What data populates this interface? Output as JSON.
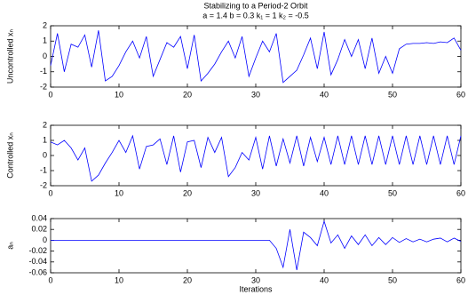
{
  "chart_data": [
    {
      "type": "line",
      "title": "Stabilizing to a Period-2 Orbit",
      "subtitle": "a = 1.4  b = 0.3  k₁ = 1  k₂ = -0.5",
      "ylabel": "Uncontrolled xₙ",
      "color": "#0000ff",
      "xlim": [
        0,
        60
      ],
      "xticks": [
        0,
        10,
        20,
        30,
        40,
        50,
        60
      ],
      "ylim": [
        -2,
        2
      ],
      "yticks": [
        -2,
        -1,
        0,
        1,
        2
      ],
      "x": [
        0,
        1,
        2,
        3,
        4,
        5,
        6,
        7,
        8,
        9,
        10,
        11,
        12,
        13,
        14,
        15,
        16,
        17,
        18,
        19,
        20,
        21,
        22,
        23,
        24,
        25,
        26,
        27,
        28,
        29,
        30,
        31,
        32,
        33,
        34,
        35,
        36,
        37,
        38,
        39,
        40,
        41,
        42,
        43,
        44,
        45,
        46,
        47,
        48,
        49,
        50,
        51,
        52,
        53,
        54,
        55,
        56,
        57,
        58,
        59,
        60
      ],
      "values": [
        -0.6,
        1.5,
        -1.0,
        0.8,
        0.6,
        1.4,
        -0.7,
        1.7,
        -1.6,
        -1.3,
        -0.6,
        0.3,
        1.0,
        -0.1,
        1.3,
        -1.3,
        -0.2,
        0.9,
        0.6,
        1.3,
        -0.8,
        1.4,
        -1.6,
        -1.1,
        -0.5,
        0.3,
        1.0,
        -0.1,
        1.3,
        -1.3,
        -0.1,
        1.0,
        0.3,
        1.5,
        -1.7,
        -1.3,
        -0.9,
        0.1,
        1.2,
        -0.8,
        1.6,
        -1.2,
        -0.2,
        1.1,
        0.0,
        1.1,
        -0.8,
        1.2,
        -1.1,
        0.0,
        -1.1,
        0.5,
        0.8,
        0.85,
        0.85,
        0.9,
        0.85,
        0.95,
        0.9,
        1.2,
        0.4
      ]
    },
    {
      "type": "line",
      "ylabel": "Controlled xₙ",
      "color": "#0000ff",
      "xlim": [
        0,
        60
      ],
      "xticks": [
        0,
        10,
        20,
        30,
        40,
        50,
        60
      ],
      "ylim": [
        -2,
        2
      ],
      "yticks": [
        -2,
        -1,
        0,
        1,
        2
      ],
      "x": [
        0,
        1,
        2,
        3,
        4,
        5,
        6,
        7,
        8,
        9,
        10,
        11,
        12,
        13,
        14,
        15,
        16,
        17,
        18,
        19,
        20,
        21,
        22,
        23,
        24,
        25,
        26,
        27,
        28,
        29,
        30,
        31,
        32,
        33,
        34,
        35,
        36,
        37,
        38,
        39,
        40,
        41,
        42,
        43,
        44,
        45,
        46,
        47,
        48,
        49,
        50,
        51,
        52,
        53,
        54,
        55,
        56,
        57,
        58,
        59,
        60
      ],
      "values": [
        0.9,
        0.7,
        1.0,
        0.5,
        -0.3,
        0.5,
        -1.7,
        -1.3,
        -0.5,
        0.2,
        1.0,
        0.2,
        1.3,
        -0.9,
        0.6,
        0.7,
        1.1,
        -0.6,
        1.3,
        -1.1,
        0.9,
        1.0,
        -0.8,
        1.2,
        0.2,
        1.2,
        -1.4,
        -0.8,
        0.2,
        -0.3,
        1.2,
        -0.9,
        1.3,
        -0.7,
        1.1,
        -0.5,
        1.3,
        -0.7,
        1.2,
        -0.4,
        1.2,
        -0.6,
        1.3,
        -0.6,
        1.3,
        -0.6,
        1.3,
        -0.6,
        1.3,
        -0.6,
        1.3,
        -0.6,
        1.3,
        -0.6,
        1.3,
        -0.6,
        1.3,
        -0.6,
        1.3,
        -0.6,
        1.3
      ]
    },
    {
      "type": "line",
      "ylabel": "aₙ",
      "xlabel": "Iterations",
      "color": "#0000ff",
      "xlim": [
        0,
        60
      ],
      "xticks": [
        0,
        10,
        20,
        30,
        40,
        50,
        60
      ],
      "ylim": [
        -0.06,
        0.04
      ],
      "yticks": [
        -0.06,
        -0.04,
        -0.02,
        0,
        0.02,
        0.04
      ],
      "x": [
        0,
        1,
        2,
        3,
        4,
        5,
        6,
        7,
        8,
        9,
        10,
        11,
        12,
        13,
        14,
        15,
        16,
        17,
        18,
        19,
        20,
        21,
        22,
        23,
        24,
        25,
        26,
        27,
        28,
        29,
        30,
        31,
        32,
        33,
        34,
        35,
        36,
        37,
        38,
        39,
        40,
        41,
        42,
        43,
        44,
        45,
        46,
        47,
        48,
        49,
        50,
        51,
        52,
        53,
        54,
        55,
        56,
        57,
        58,
        59,
        60
      ],
      "values": [
        0,
        0,
        0,
        0,
        0,
        0,
        0,
        0,
        0,
        0,
        0,
        0,
        0,
        0,
        0,
        0,
        0,
        0,
        0,
        0,
        0,
        0,
        0,
        0,
        0,
        0,
        0,
        0,
        0,
        0,
        0,
        0,
        0,
        -0.015,
        -0.05,
        0.02,
        -0.055,
        0.015,
        0.005,
        -0.01,
        0.035,
        -0.005,
        0.01,
        -0.015,
        0.008,
        -0.008,
        0.01,
        -0.01,
        0.005,
        -0.008,
        0.005,
        -0.004,
        0.003,
        -0.003,
        0.002,
        -0.003,
        0.002,
        0.004,
        -0.003,
        0.004,
        -0.002
      ]
    }
  ]
}
